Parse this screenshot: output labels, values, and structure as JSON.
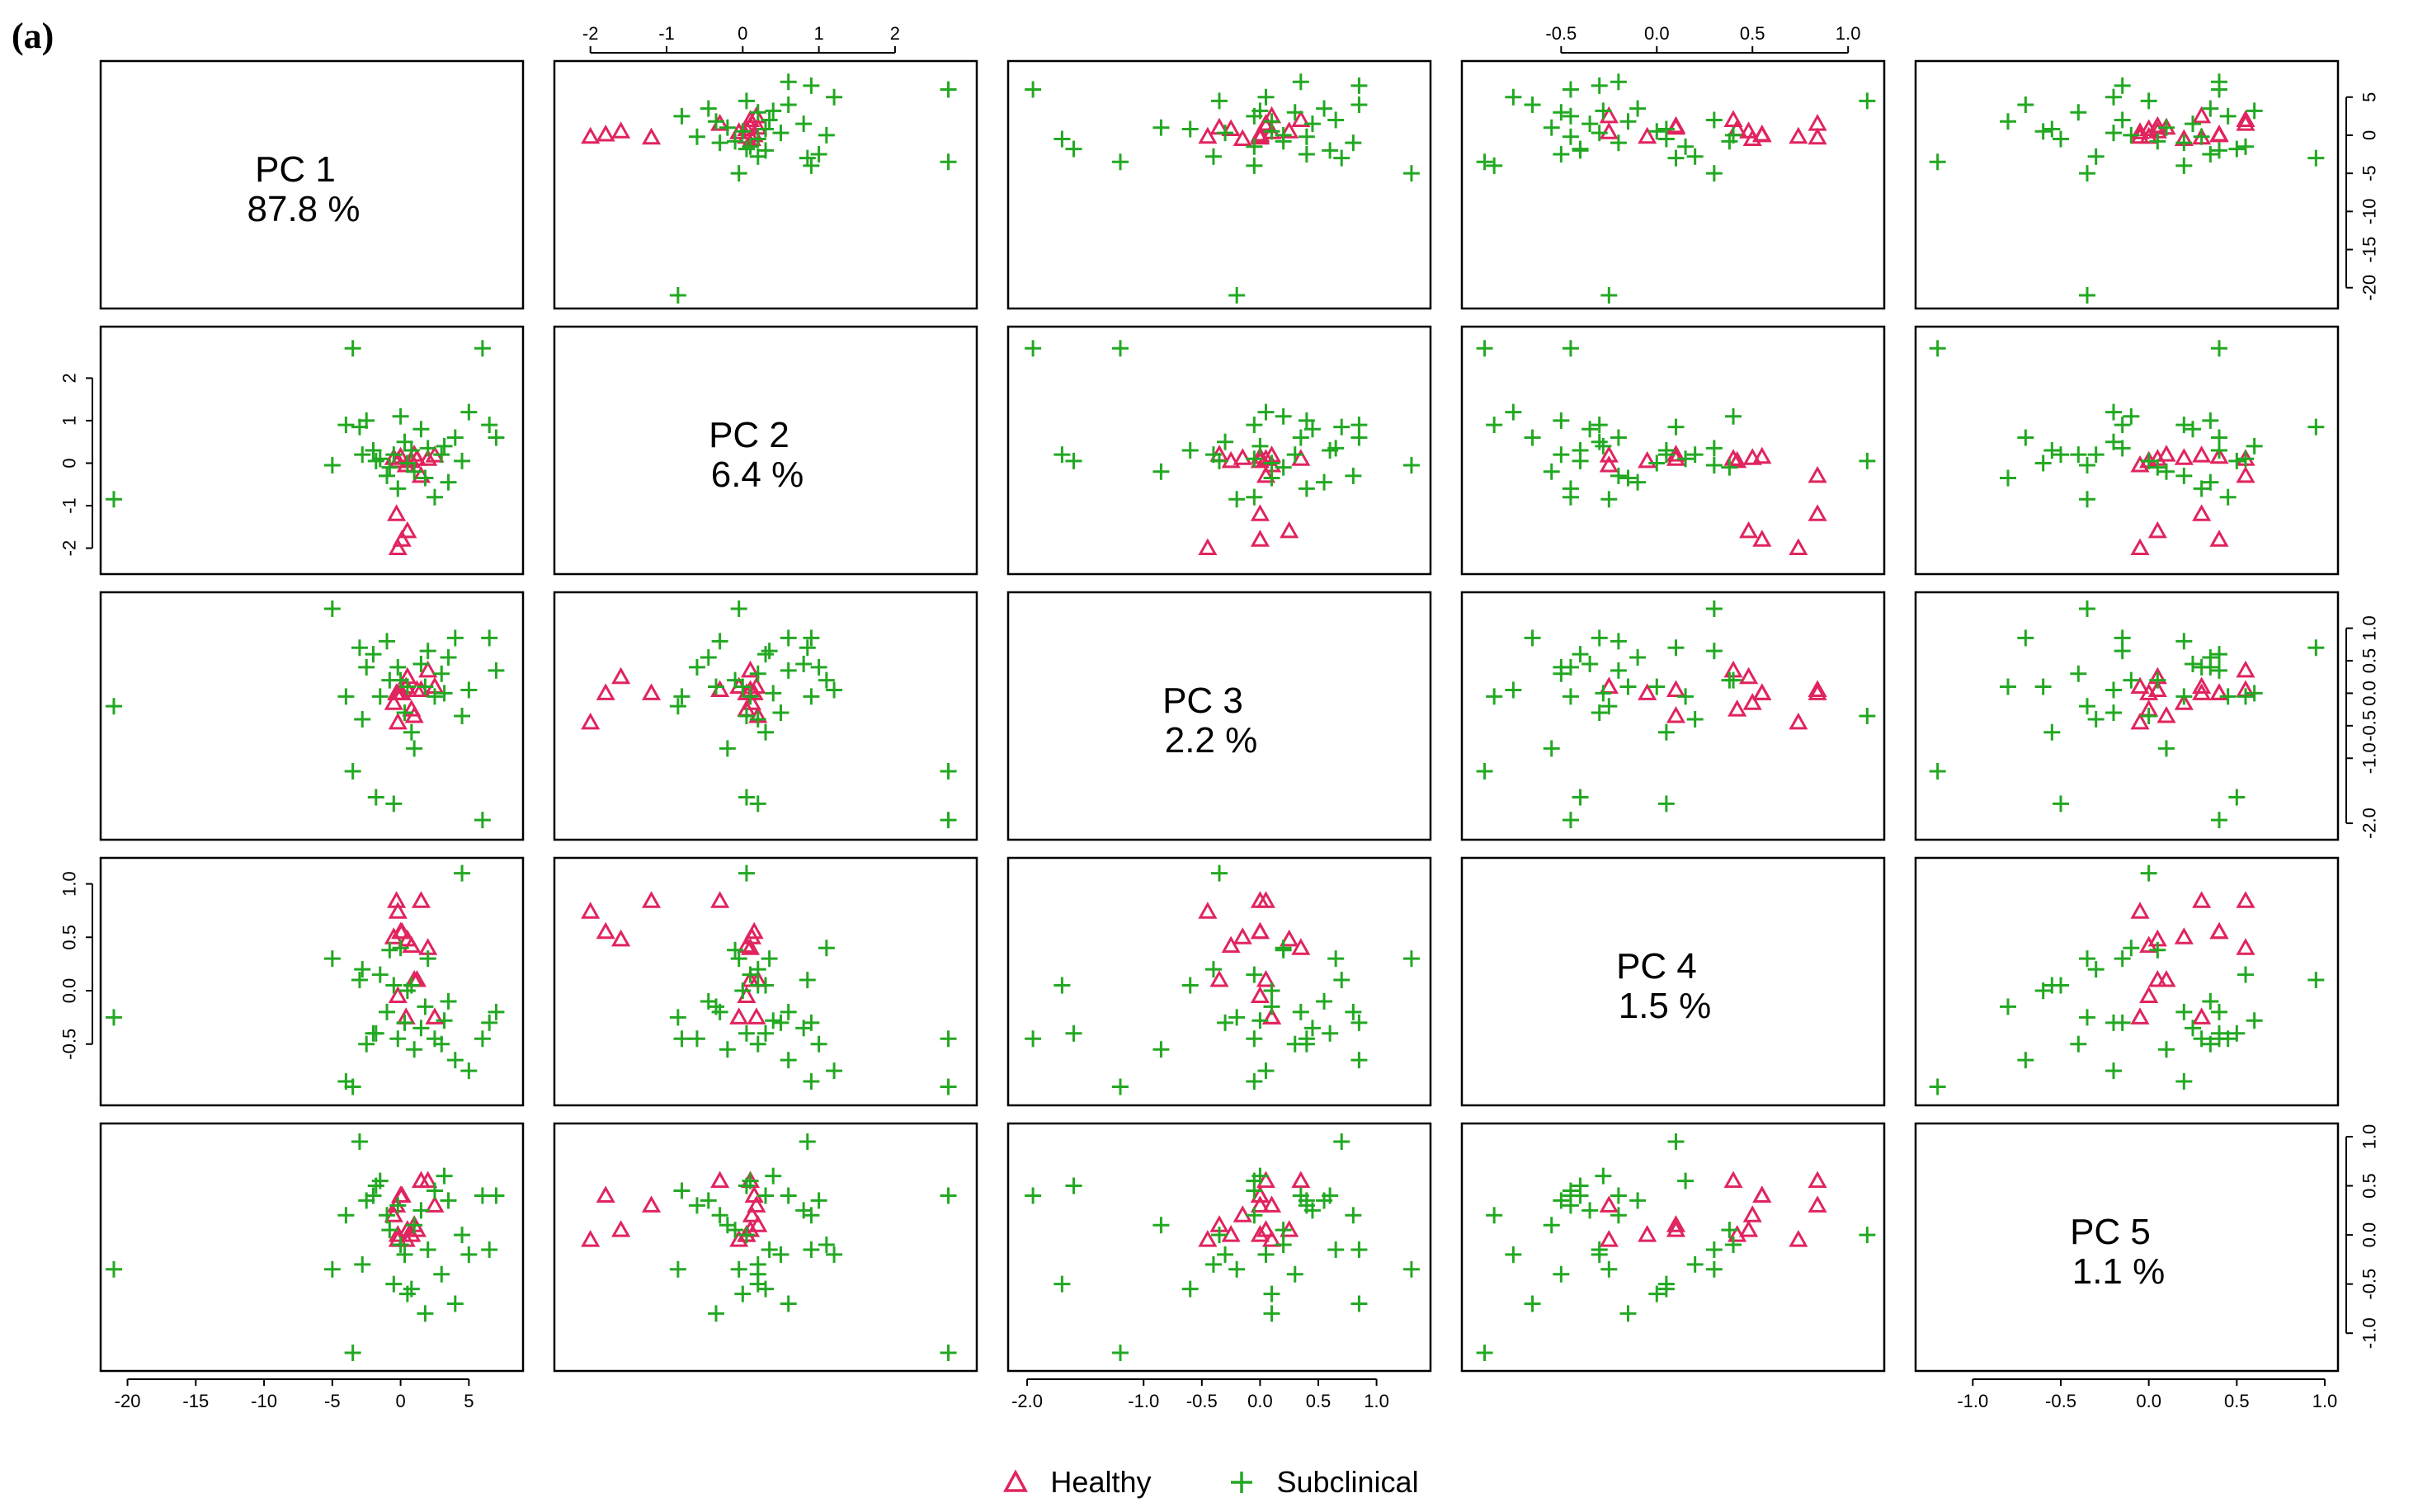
{
  "figure_label": "(a)",
  "legend": {
    "healthy_label": "Healthy",
    "subclinical_label": "Subclinical"
  },
  "colors": {
    "healthy": "#e0245e",
    "subclinical": "#22a822",
    "frame": "#000000"
  },
  "chart_data": {
    "type": "scatter",
    "kind": "pairs-matrix",
    "components": [
      {
        "name": "PC 1",
        "variance": "87.8 %",
        "range": [
          -21,
          8
        ],
        "ticks": [
          -20,
          -15,
          -10,
          -5,
          0,
          5
        ],
        "tick_labels": [
          "-20",
          "-15",
          "-10",
          "-5",
          "0",
          "5"
        ]
      },
      {
        "name": "PC 2",
        "variance": "6.4 %",
        "range": [
          -2.3,
          2.9
        ],
        "ticks": [
          -2,
          -1,
          0,
          1,
          2
        ],
        "tick_labels": [
          "-2",
          "-1",
          "0",
          "1",
          "2"
        ]
      },
      {
        "name": "PC 3",
        "variance": "2.2 %",
        "range": [
          -2.05,
          1.35
        ],
        "ticks": [
          -2.0,
          -1.0,
          -0.5,
          0.0,
          0.5,
          1.0
        ],
        "tick_labels": [
          "-2.0",
          "-1.0",
          "-0.5",
          "0.0",
          "0.5",
          "1.0"
        ]
      },
      {
        "name": "PC 4",
        "variance": "1.5 %",
        "range": [
          -0.95,
          1.12
        ],
        "ticks": [
          -0.5,
          0.0,
          0.5,
          1.0
        ],
        "tick_labels": [
          "-0.5",
          "0.0",
          "0.5",
          "1.0"
        ]
      },
      {
        "name": "PC 5",
        "variance": "1.1 %",
        "range": [
          -1.25,
          1.0
        ],
        "ticks": [
          -1.0,
          -0.5,
          0.0,
          0.5,
          1.0
        ],
        "tick_labels": [
          "-1.0",
          "-0.5",
          "0.0",
          "0.5",
          "1.0"
        ]
      }
    ],
    "series": [
      {
        "name": "Healthy",
        "marker": "triangle",
        "points": [
          [
            -0.2,
            -2.0,
            -0.45,
            0.74,
            -0.05
          ],
          [
            0.1,
            -1.8,
            0.0,
            0.55,
            0.4
          ],
          [
            0.5,
            -1.6,
            0.25,
            0.48,
            0.05
          ],
          [
            -0.3,
            -1.2,
            0.0,
            0.84,
            0.3
          ],
          [
            1.5,
            -0.3,
            0.05,
            0.84,
            0.55
          ],
          [
            2.0,
            0.1,
            0.35,
            0.4,
            0.55
          ],
          [
            1.0,
            0.2,
            -0.35,
            0.1,
            0.1
          ],
          [
            0.0,
            0.15,
            0.0,
            0.55,
            0.4
          ],
          [
            -0.5,
            0.12,
            -0.15,
            0.5,
            0.2
          ],
          [
            0.8,
            0.05,
            -0.25,
            0.42,
            0.0
          ],
          [
            2.5,
            0.18,
            0.1,
            -0.25,
            0.3
          ],
          [
            1.2,
            0.1,
            0.05,
            0.1,
            0.05
          ],
          [
            -0.2,
            0.05,
            0.0,
            -0.05,
            0.0
          ],
          [
            0.4,
            -0.05,
            0.1,
            -0.25,
            -0.05
          ]
        ]
      },
      {
        "name": "Subclinical",
        "marker": "plus",
        "points": [
          [
            -21.0,
            -0.85,
            -0.2,
            -0.25,
            -0.35
          ],
          [
            -5.0,
            -0.05,
            1.3,
            0.3,
            -0.35
          ],
          [
            -3.5,
            2.7,
            -1.2,
            -0.9,
            -1.2
          ],
          [
            -3.0,
            0.85,
            0.7,
            0.1,
            0.95
          ],
          [
            -2.5,
            1.0,
            0.4,
            -0.5,
            0.35
          ],
          [
            -2.0,
            0.3,
            0.6,
            -0.4,
            0.4
          ],
          [
            -1.5,
            0.1,
            -0.05,
            0.15,
            0.55
          ],
          [
            -1.0,
            -0.3,
            0.8,
            -0.2,
            0.2
          ],
          [
            -0.5,
            0.2,
            -1.7,
            0.05,
            -0.5
          ],
          [
            -0.2,
            -0.6,
            0.4,
            -0.45,
            0.3
          ],
          [
            0.0,
            1.1,
            0.2,
            0.4,
            -0.1
          ],
          [
            0.3,
            0.5,
            -0.3,
            -0.3,
            -0.2
          ],
          [
            0.5,
            0.0,
            0.1,
            0.0,
            -0.6
          ],
          [
            1.0,
            -0.2,
            -0.85,
            -0.55,
            0.1
          ],
          [
            1.5,
            0.8,
            0.45,
            -0.35,
            0.25
          ],
          [
            2.0,
            0.35,
            0.65,
            0.3,
            -0.15
          ],
          [
            2.5,
            -0.8,
            -0.05,
            -0.45,
            0.45
          ],
          [
            3.0,
            0.2,
            0.3,
            -0.5,
            -0.4
          ],
          [
            3.5,
            -0.45,
            0.55,
            -0.1,
            0.35
          ],
          [
            4.0,
            0.6,
            0.85,
            -0.65,
            -0.7
          ],
          [
            4.5,
            0.05,
            -0.35,
            1.1,
            0.0
          ],
          [
            5.0,
            1.2,
            0.05,
            -0.75,
            -0.2
          ],
          [
            6.0,
            2.7,
            -1.95,
            -0.45,
            0.4
          ],
          [
            6.5,
            0.9,
            0.85,
            -0.3,
            -0.15
          ],
          [
            7.0,
            0.6,
            0.35,
            -0.2,
            0.4
          ],
          [
            -4.0,
            0.9,
            -0.05,
            -0.85,
            0.2
          ],
          [
            -1.8,
            0.05,
            -1.6,
            -0.4,
            0.5
          ],
          [
            1.8,
            -0.35,
            0.1,
            -0.15,
            -0.8
          ],
          [
            0.8,
            0.3,
            -0.6,
            0.05,
            -0.55
          ],
          [
            -0.8,
            -0.1,
            0.2,
            0.38,
            0.05
          ],
          [
            3.2,
            0.4,
            0.0,
            -0.28,
            0.6
          ],
          [
            -2.8,
            0.2,
            -0.4,
            0.2,
            -0.3
          ]
        ]
      }
    ]
  }
}
